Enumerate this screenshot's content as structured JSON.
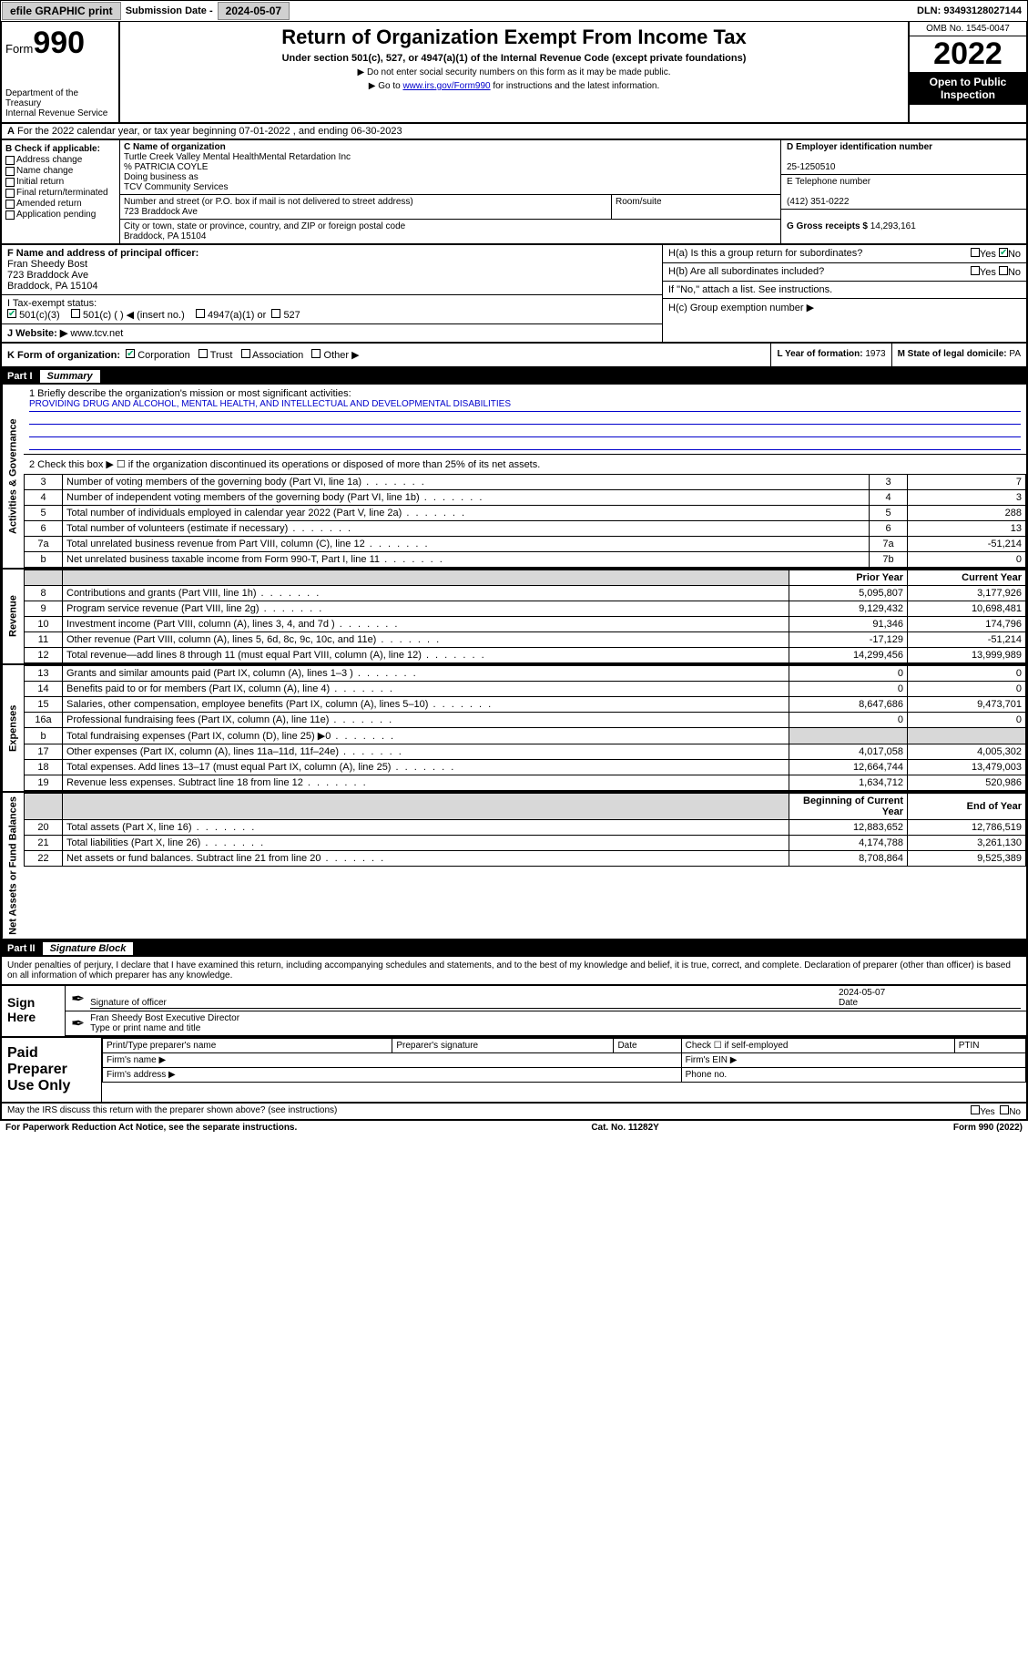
{
  "topbar": {
    "efile": "efile GRAPHIC print",
    "submission_label": "Submission Date - ",
    "submission_date": "2024-05-07",
    "dln_label": "DLN: ",
    "dln": "93493128027144"
  },
  "header": {
    "form_word": "Form",
    "form_num": "990",
    "dept": "Department of the Treasury\nInternal Revenue Service",
    "title": "Return of Organization Exempt From Income Tax",
    "subtitle": "Under section 501(c), 527, or 4947(a)(1) of the Internal Revenue Code (except private foundations)",
    "note1": "▶ Do not enter social security numbers on this form as it may be made public.",
    "note2_pre": "▶ Go to ",
    "note2_link": "www.irs.gov/Form990",
    "note2_post": " for instructions and the latest information.",
    "omb": "OMB No. 1545-0047",
    "year": "2022",
    "open": "Open to Public Inspection"
  },
  "row_a": {
    "label": "A",
    "text": "For the 2022 calendar year, or tax year beginning 07-01-2022   , and ending 06-30-2023"
  },
  "col_b": {
    "label": "B Check if applicable:",
    "opts": [
      "Address change",
      "Name change",
      "Initial return",
      "Final return/terminated",
      "Amended return",
      "Application pending"
    ]
  },
  "org": {
    "c_label": "C Name of organization",
    "name": "Turtle Creek Valley Mental HealthMental Retardation Inc",
    "care_of": "% PATRICIA COYLE",
    "dba_label": "Doing business as",
    "dba": "TCV Community Services",
    "addr_label": "Number and street (or P.O. box if mail is not delivered to street address)",
    "room_label": "Room/suite",
    "addr": "723 Braddock Ave",
    "city_label": "City or town, state or province, country, and ZIP or foreign postal code",
    "city": "Braddock, PA  15104"
  },
  "right": {
    "d_label": "D Employer identification number",
    "ein": "25-1250510",
    "e_label": "E Telephone number",
    "phone": "(412) 351-0222",
    "g_label": "G Gross receipts $ ",
    "gross": "14,293,161"
  },
  "section_f": {
    "f_label": "F  Name and address of principal officer:",
    "officer": "Fran Sheedy Bost",
    "addr1": "723 Braddock Ave",
    "addr2": "Braddock, PA  15104"
  },
  "section_h": {
    "ha_label": "H(a)  Is this a group return for subordinates?",
    "hb_label": "H(b)  Are all subordinates included?",
    "h_note": "If \"No,\" attach a list. See instructions.",
    "hc_label": "H(c)  Group exemption number ▶",
    "yes": "Yes",
    "no": "No"
  },
  "section_i": {
    "label": "I      Tax-exempt status:",
    "opt1": "501(c)(3)",
    "opt2": "501(c) (   ) ◀ (insert no.)",
    "opt3": "4947(a)(1) or",
    "opt4": "527"
  },
  "section_j": {
    "label": "J    Website: ▶ ",
    "site": "www.tcv.net"
  },
  "section_k": {
    "label": "K Form of organization:",
    "opts": [
      "Corporation",
      "Trust",
      "Association",
      "Other ▶"
    ],
    "l_label": "L Year of formation: ",
    "l_val": "1973",
    "m_label": "M State of legal domicile: ",
    "m_val": "PA"
  },
  "part1": {
    "label": "Part I",
    "title": "Summary"
  },
  "mission": {
    "line1_label": "1   Briefly describe the organization's mission or most significant activities:",
    "text": "PROVIDING DRUG AND ALCOHOL, MENTAL HEALTH, AND INTELLECTUAL AND DEVELOPMENTAL DISABILITIES"
  },
  "governance": {
    "side": "Activities & Governance",
    "line2": "2    Check this box ▶ ☐  if the organization discontinued its operations or disposed of more than 25% of its net assets.",
    "rows": [
      {
        "n": "3",
        "desc": "Number of voting members of the governing body (Part VI, line 1a)",
        "box": "3",
        "val": "7"
      },
      {
        "n": "4",
        "desc": "Number of independent voting members of the governing body (Part VI, line 1b)",
        "box": "4",
        "val": "3"
      },
      {
        "n": "5",
        "desc": "Total number of individuals employed in calendar year 2022 (Part V, line 2a)",
        "box": "5",
        "val": "288"
      },
      {
        "n": "6",
        "desc": "Total number of volunteers (estimate if necessary)",
        "box": "6",
        "val": "13"
      },
      {
        "n": "7a",
        "desc": "Total unrelated business revenue from Part VIII, column (C), line 12",
        "box": "7a",
        "val": "-51,214"
      },
      {
        "n": "b",
        "desc": "Net unrelated business taxable income from Form 990-T, Part I, line 11",
        "box": "7b",
        "val": "0"
      }
    ]
  },
  "revenue": {
    "side": "Revenue",
    "header_prior": "Prior Year",
    "header_current": "Current Year",
    "rows": [
      {
        "n": "8",
        "desc": "Contributions and grants (Part VIII, line 1h)",
        "p": "5,095,807",
        "c": "3,177,926"
      },
      {
        "n": "9",
        "desc": "Program service revenue (Part VIII, line 2g)",
        "p": "9,129,432",
        "c": "10,698,481"
      },
      {
        "n": "10",
        "desc": "Investment income (Part VIII, column (A), lines 3, 4, and 7d )",
        "p": "91,346",
        "c": "174,796"
      },
      {
        "n": "11",
        "desc": "Other revenue (Part VIII, column (A), lines 5, 6d, 8c, 9c, 10c, and 11e)",
        "p": "-17,129",
        "c": "-51,214"
      },
      {
        "n": "12",
        "desc": "Total revenue—add lines 8 through 11 (must equal Part VIII, column (A), line 12)",
        "p": "14,299,456",
        "c": "13,999,989"
      }
    ]
  },
  "expenses": {
    "side": "Expenses",
    "rows": [
      {
        "n": "13",
        "desc": "Grants and similar amounts paid (Part IX, column (A), lines 1–3 )",
        "p": "0",
        "c": "0"
      },
      {
        "n": "14",
        "desc": "Benefits paid to or for members (Part IX, column (A), line 4)",
        "p": "0",
        "c": "0"
      },
      {
        "n": "15",
        "desc": "Salaries, other compensation, employee benefits (Part IX, column (A), lines 5–10)",
        "p": "8,647,686",
        "c": "9,473,701"
      },
      {
        "n": "16a",
        "desc": "Professional fundraising fees (Part IX, column (A), line 11e)",
        "p": "0",
        "c": "0"
      },
      {
        "n": "b",
        "desc": "Total fundraising expenses (Part IX, column (D), line 25) ▶0",
        "p": "",
        "c": "",
        "shaded": true
      },
      {
        "n": "17",
        "desc": "Other expenses (Part IX, column (A), lines 11a–11d, 11f–24e)",
        "p": "4,017,058",
        "c": "4,005,302"
      },
      {
        "n": "18",
        "desc": "Total expenses. Add lines 13–17 (must equal Part IX, column (A), line 25)",
        "p": "12,664,744",
        "c": "13,479,003"
      },
      {
        "n": "19",
        "desc": "Revenue less expenses. Subtract line 18 from line 12",
        "p": "1,634,712",
        "c": "520,986"
      }
    ]
  },
  "netassets": {
    "side": "Net Assets or Fund Balances",
    "header_begin": "Beginning of Current Year",
    "header_end": "End of Year",
    "rows": [
      {
        "n": "20",
        "desc": "Total assets (Part X, line 16)",
        "p": "12,883,652",
        "c": "12,786,519"
      },
      {
        "n": "21",
        "desc": "Total liabilities (Part X, line 26)",
        "p": "4,174,788",
        "c": "3,261,130"
      },
      {
        "n": "22",
        "desc": "Net assets or fund balances. Subtract line 21 from line 20",
        "p": "8,708,864",
        "c": "9,525,389"
      }
    ]
  },
  "part2": {
    "label": "Part II",
    "title": "Signature Block",
    "declaration": "Under penalties of perjury, I declare that I have examined this return, including accompanying schedules and statements, and to the best of my knowledge and belief, it is true, correct, and complete. Declaration of preparer (other than officer) is based on all information of which preparer has any knowledge."
  },
  "sign": {
    "label": "Sign Here",
    "sig_of_officer": "Signature of officer",
    "date_label": "Date",
    "date": "2024-05-07",
    "officer_name": "Fran Sheedy Bost  Executive Director",
    "type_label": "Type or print name and title"
  },
  "paid": {
    "label": "Paid Preparer Use Only",
    "h1": "Print/Type preparer's name",
    "h2": "Preparer's signature",
    "h3": "Date",
    "h4_pre": "Check ☐ if self-employed",
    "h5": "PTIN",
    "firm_name": "Firm's name    ▶",
    "firm_ein": "Firm's EIN ▶",
    "firm_addr": "Firm's address ▶",
    "phone": "Phone no."
  },
  "footer": {
    "discuss": "May the IRS discuss this return with the preparer shown above? (see instructions)",
    "yes": "Yes",
    "no": "No",
    "paperwork": "For Paperwork Reduction Act Notice, see the separate instructions.",
    "cat": "Cat. No. 11282Y",
    "formno": "Form 990 (2022)"
  }
}
